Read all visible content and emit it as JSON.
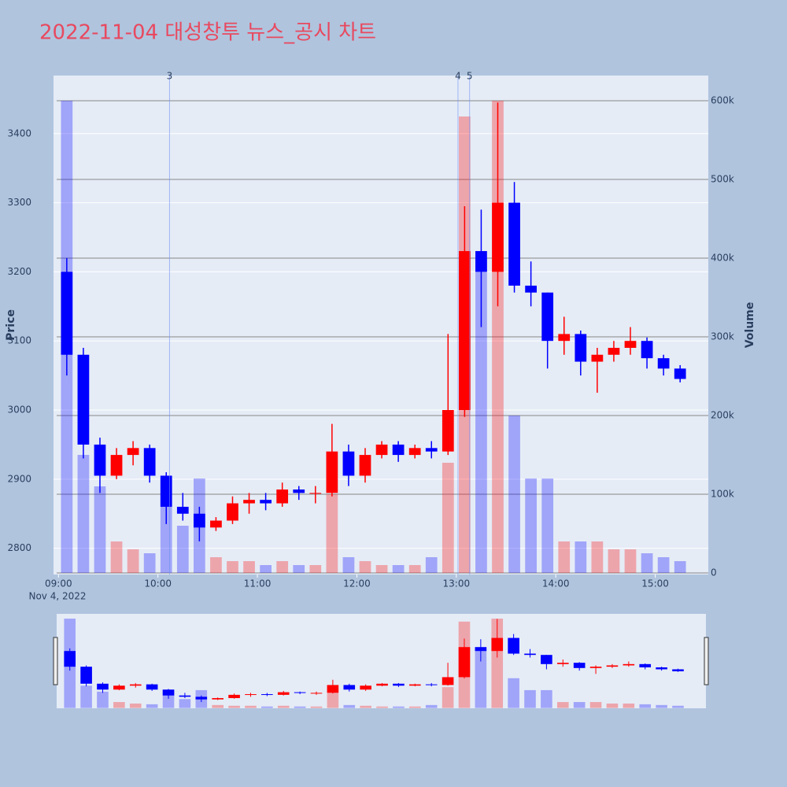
{
  "chart_data": {
    "type": "candlestick",
    "title": "2022-11-04 대성창투 뉴스_공시 차트",
    "y_label": "Price",
    "y2_label": "Volume",
    "x_date_label": "Nov 4, 2022",
    "increasing_color": "#ff0000",
    "decreasing_color": "#0000ff",
    "grid": true,
    "x": [
      "2022-11-04 09:00",
      "2022-11-04 09:10",
      "2022-11-04 09:20",
      "2022-11-04 09:30",
      "2022-11-04 09:40",
      "2022-11-04 09:50",
      "2022-11-04 10:00",
      "2022-11-04 10:10",
      "2022-11-04 10:20",
      "2022-11-04 10:30",
      "2022-11-04 10:40",
      "2022-11-04 10:50",
      "2022-11-04 11:00",
      "2022-11-04 11:10",
      "2022-11-04 11:20",
      "2022-11-04 11:30",
      "2022-11-04 11:40",
      "2022-11-04 11:50",
      "2022-11-04 12:00",
      "2022-11-04 12:10",
      "2022-11-04 12:20",
      "2022-11-04 12:30",
      "2022-11-04 12:40",
      "2022-11-04 12:50",
      "2022-11-04 13:00",
      "2022-11-04 13:10",
      "2022-11-04 13:20",
      "2022-11-04 13:30",
      "2022-11-04 13:40",
      "2022-11-04 13:50",
      "2022-11-04 14:00",
      "2022-11-04 14:10",
      "2022-11-04 14:20",
      "2022-11-04 14:30",
      "2022-11-04 14:40",
      "2022-11-04 14:50",
      "2022-11-04 15:00",
      "2022-11-04 15:10"
    ],
    "open": [
      3200,
      3080,
      2950,
      2905,
      2935,
      2945,
      2905,
      2860,
      2850,
      2830,
      2840,
      2865,
      2870,
      2865,
      2885,
      2880,
      2880,
      2940,
      2905,
      2935,
      2950,
      2935,
      2945,
      2940,
      3000,
      3230,
      3200,
      3300,
      3180,
      3170,
      3100,
      3110,
      3070,
      3080,
      3090,
      3100,
      3075,
      3060
    ],
    "high": [
      3220,
      3090,
      2960,
      2945,
      2955,
      2950,
      2910,
      2880,
      2860,
      2845,
      2875,
      2880,
      2880,
      2895,
      2890,
      2890,
      2980,
      2950,
      2945,
      2955,
      2955,
      2950,
      2955,
      3110,
      3295,
      3290,
      3445,
      3330,
      3215,
      3170,
      3135,
      3115,
      3090,
      3100,
      3120,
      3105,
      3080,
      3065
    ],
    "low": [
      3050,
      2930,
      2880,
      2900,
      2920,
      2895,
      2835,
      2840,
      2810,
      2825,
      2835,
      2850,
      2855,
      2860,
      2870,
      2865,
      2875,
      2890,
      2895,
      2930,
      2925,
      2930,
      2930,
      2935,
      2990,
      3120,
      3150,
      3170,
      3150,
      3060,
      3080,
      3050,
      3025,
      3070,
      3080,
      3060,
      3050,
      3040
    ],
    "close": [
      3080,
      2950,
      2905,
      2935,
      2945,
      2905,
      2860,
      2850,
      2830,
      2840,
      2865,
      2870,
      2865,
      2885,
      2880,
      2880,
      2940,
      2905,
      2935,
      2950,
      2935,
      2945,
      2940,
      3000,
      3230,
      3200,
      3300,
      3180,
      3170,
      3100,
      3110,
      3070,
      3080,
      3090,
      3100,
      3075,
      3060,
      3045
    ],
    "volume": [
      600000,
      150000,
      110000,
      40000,
      30000,
      25000,
      120000,
      60000,
      120000,
      20000,
      15000,
      15000,
      10000,
      15000,
      10000,
      10000,
      100000,
      20000,
      15000,
      10000,
      10000,
      10000,
      20000,
      140000,
      580000,
      400000,
      600000,
      200000,
      120000,
      120000,
      40000,
      40000,
      40000,
      30000,
      30000,
      25000,
      20000,
      15000
    ],
    "xlim": [
      "2022-11-04 08:57",
      "2022-11-04 15:32"
    ],
    "xticks": [
      {
        "value": "2022-11-04 09:00",
        "label": "09:00"
      },
      {
        "value": "2022-11-04 10:00",
        "label": "10:00"
      },
      {
        "value": "2022-11-04 11:00",
        "label": "11:00"
      },
      {
        "value": "2022-11-04 12:00",
        "label": "12:00"
      },
      {
        "value": "2022-11-04 13:00",
        "label": "13:00"
      },
      {
        "value": "2022-11-04 14:00",
        "label": "14:00"
      },
      {
        "value": "2022-11-04 15:00",
        "label": "15:00"
      }
    ],
    "ylim": [
      2762,
      3484
    ],
    "yticks": [
      2800,
      2900,
      3000,
      3100,
      3200,
      3300,
      3400
    ],
    "y2lim": [
      -2000,
      632000
    ],
    "y2ticks": [
      0,
      {
        "value": 100000,
        "label": "100k"
      },
      {
        "value": 200000,
        "label": "200k"
      },
      {
        "value": 300000,
        "label": "300k"
      },
      {
        "value": 400000,
        "label": "400k"
      },
      {
        "value": 500000,
        "label": "500k"
      },
      {
        "value": 600000,
        "label": "600k"
      }
    ],
    "annotations": [
      {
        "x": "2022-11-04 10:07",
        "label": "3"
      },
      {
        "x": "2022-11-04 13:01",
        "label": "4"
      },
      {
        "x": "2022-11-04 13:08",
        "label": "5"
      }
    ]
  }
}
